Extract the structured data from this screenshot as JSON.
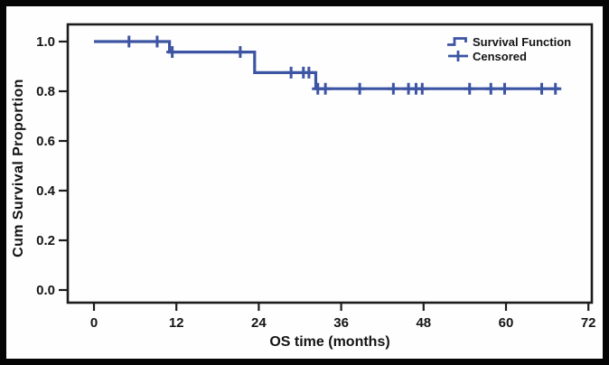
{
  "chart_data": {
    "type": "line",
    "subtype": "kaplan-meier-step-survival",
    "title": "",
    "xlabel": "OS time (months)",
    "ylabel": "Cum Survival Proportion",
    "xtick_values": [
      0,
      12,
      24,
      36,
      48,
      60,
      72
    ],
    "xtick_labels": [
      "0",
      "12",
      "24",
      "36",
      "48",
      "60",
      "72"
    ],
    "ytick_values": [
      0.0,
      0.2,
      0.4,
      0.6,
      0.8,
      1.0
    ],
    "ytick_labels": [
      "0.0",
      "0.2",
      "0.4",
      "0.6",
      "0.8",
      "1.0"
    ],
    "xlim": [
      -4,
      73
    ],
    "ylim": [
      -0.05,
      1.07
    ],
    "grid": false,
    "series": [
      {
        "name": "Survival Function",
        "type": "step",
        "points": [
          [
            0,
            1.0
          ],
          [
            11,
            1.0
          ],
          [
            11,
            0.958
          ],
          [
            23.4,
            0.958
          ],
          [
            23.4,
            0.875
          ],
          [
            32.3,
            0.875
          ],
          [
            32.3,
            0.81
          ],
          [
            67.8,
            0.81
          ]
        ]
      },
      {
        "name": "Censored",
        "type": "plus-markers",
        "points": [
          [
            5.1,
            1.0
          ],
          [
            9.2,
            1.0
          ],
          [
            11.4,
            0.958
          ],
          [
            21.3,
            0.958
          ],
          [
            28.7,
            0.875
          ],
          [
            30.5,
            0.875
          ],
          [
            31.3,
            0.875
          ],
          [
            32.6,
            0.81
          ],
          [
            33.7,
            0.81
          ],
          [
            38.7,
            0.81
          ],
          [
            43.6,
            0.81
          ],
          [
            45.8,
            0.81
          ],
          [
            46.9,
            0.81
          ],
          [
            47.8,
            0.81
          ],
          [
            54.7,
            0.81
          ],
          [
            57.8,
            0.81
          ],
          [
            59.8,
            0.81
          ],
          [
            65.2,
            0.81
          ],
          [
            67.2,
            0.81
          ]
        ]
      }
    ],
    "legend": {
      "position": "top-right",
      "entries": [
        {
          "label": "Survival Function",
          "marker": "step-line"
        },
        {
          "label": "Censored",
          "marker": "plus"
        }
      ]
    },
    "colors": {
      "line": "#3d54a3",
      "text": "#151515",
      "frame": "#1c1c1c",
      "background": "#fefefe",
      "outer_border": "#050505"
    }
  }
}
